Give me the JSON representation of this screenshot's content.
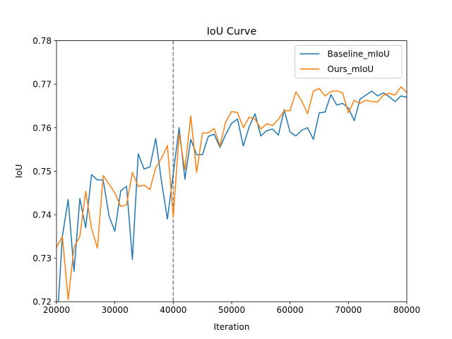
{
  "chart_data": {
    "type": "line",
    "title": "IoU Curve",
    "xlabel": "Iteration",
    "ylabel": "IoU",
    "xlim": [
      20000,
      80000
    ],
    "ylim": [
      0.72,
      0.78
    ],
    "x_ticks": [
      20000,
      30000,
      40000,
      50000,
      60000,
      70000,
      80000
    ],
    "x_tick_labels": [
      "20000",
      "30000",
      "40000",
      "50000",
      "60000",
      "70000",
      "80000"
    ],
    "y_ticks": [
      0.72,
      0.73,
      0.74,
      0.75,
      0.76,
      0.77,
      0.78
    ],
    "y_tick_labels": [
      "0.72",
      "0.73",
      "0.74",
      "0.75",
      "0.76",
      "0.77",
      "0.78"
    ],
    "grid": false,
    "legend_position": "top-right",
    "vline": {
      "x": 40000,
      "style": "dashed",
      "color": "#808080"
    },
    "x": [
      20000,
      21000,
      22000,
      23000,
      24000,
      25000,
      26000,
      27000,
      28000,
      29000,
      30000,
      31000,
      32000,
      33000,
      34000,
      35000,
      36000,
      37000,
      38000,
      39000,
      40000,
      41000,
      42000,
      43000,
      44000,
      45000,
      46000,
      47000,
      48000,
      49000,
      50000,
      51000,
      52000,
      53000,
      54000,
      55000,
      56000,
      57000,
      58000,
      59000,
      60000,
      61000,
      62000,
      63000,
      64000,
      65000,
      66000,
      67000,
      68000,
      69000,
      70000,
      71000,
      72000,
      73000,
      74000,
      75000,
      76000,
      77000,
      78000,
      79000,
      80000
    ],
    "series": [
      {
        "name": "Baseline_mIoU",
        "color": "#1f77b4",
        "values": [
          0.7125,
          0.735,
          0.7435,
          0.727,
          0.7437,
          0.737,
          0.7492,
          0.748,
          0.748,
          0.7397,
          0.7362,
          0.7455,
          0.7465,
          0.7297,
          0.754,
          0.7505,
          0.751,
          0.7575,
          0.7475,
          0.739,
          0.7495,
          0.76,
          0.7482,
          0.7573,
          0.7538,
          0.7538,
          0.758,
          0.7585,
          0.7555,
          0.7585,
          0.761,
          0.762,
          0.7558,
          0.7602,
          0.7632,
          0.7581,
          0.7593,
          0.7597,
          0.7583,
          0.7641,
          0.759,
          0.7581,
          0.7594,
          0.76,
          0.7573,
          0.7634,
          0.7636,
          0.7676,
          0.7652,
          0.7656,
          0.7645,
          0.7616,
          0.7666,
          0.7675,
          0.7684,
          0.7673,
          0.768,
          0.7671,
          0.766,
          0.7673,
          0.767
        ]
      },
      {
        "name": "Ours_mIoU",
        "color": "#ff7f0e",
        "values": [
          0.7325,
          0.735,
          0.7205,
          0.7325,
          0.735,
          0.7454,
          0.7369,
          0.7323,
          0.749,
          0.747,
          0.745,
          0.7419,
          0.7423,
          0.7497,
          0.7465,
          0.7468,
          0.7458,
          0.7508,
          0.753,
          0.7559,
          0.7395,
          0.7586,
          0.7503,
          0.7627,
          0.7497,
          0.7588,
          0.7588,
          0.7598,
          0.7558,
          0.7614,
          0.7637,
          0.7635,
          0.76,
          0.7624,
          0.762,
          0.7597,
          0.7609,
          0.7605,
          0.7619,
          0.7639,
          0.7639,
          0.7682,
          0.7662,
          0.7632,
          0.7684,
          0.769,
          0.7673,
          0.7683,
          0.7685,
          0.768,
          0.7634,
          0.7663,
          0.7656,
          0.7663,
          0.766,
          0.7659,
          0.7675,
          0.7679,
          0.7675,
          0.7694,
          0.7681
        ]
      }
    ]
  }
}
